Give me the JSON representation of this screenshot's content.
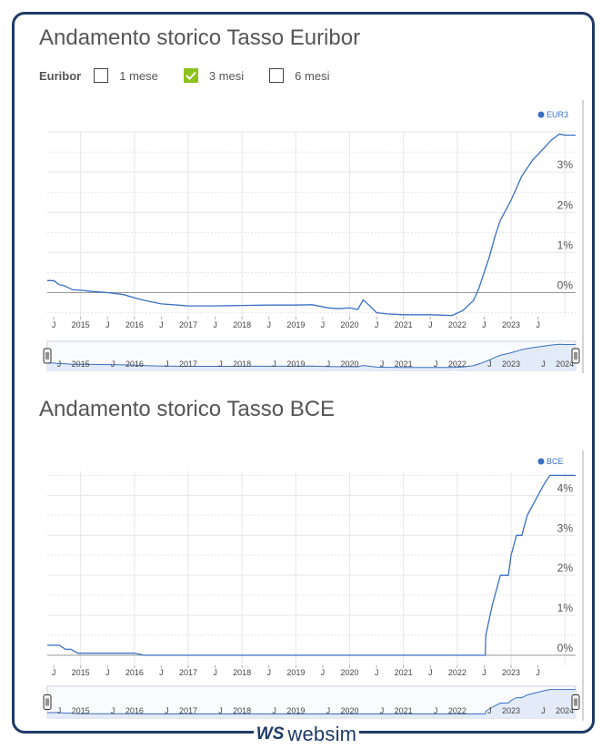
{
  "euribor": {
    "title": "Andamento storico Tasso Euribor",
    "selector_label": "Euribor",
    "options": [
      {
        "label": "1 mese",
        "checked": false
      },
      {
        "label": "3 mesi",
        "checked": true
      },
      {
        "label": "6 mesi",
        "checked": false
      }
    ]
  },
  "bce": {
    "title": "Andamento storico Tasso BCE"
  },
  "footer": {
    "brand": "websim",
    "logo_mark": "WS"
  },
  "colors": {
    "line": "#3a6fc4",
    "fill": "#e3ebf8",
    "frame": "#1f3a68",
    "grid": "#e6e6e6",
    "accent": "#8dc21f"
  },
  "chart_data": [
    {
      "type": "line",
      "legend": "EUR3",
      "legend_position": "top-right",
      "x_tick_labels": [
        "J",
        "2015",
        "J",
        "2016",
        "J",
        "2017",
        "J",
        "2018",
        "J",
        "2019",
        "J",
        "2020",
        "J",
        "2021",
        "J",
        "2022",
        "J",
        "2023",
        "J"
      ],
      "nav_tick_labels": [
        "J",
        "2015",
        "J",
        "2016",
        "J",
        "2017",
        "J",
        "2018",
        "J",
        "2019",
        "J",
        "2020",
        "J",
        "2021",
        "J",
        "2022",
        "J",
        "2023",
        "J",
        "2024"
      ],
      "y_tick_labels": [
        "0%",
        "1%",
        "2%",
        "3%"
      ],
      "y_ticks": [
        0,
        1,
        2,
        3
      ],
      "xlim": [
        2014.38,
        2024.2
      ],
      "ylim": [
        -0.6,
        4.0
      ],
      "grid": true,
      "series": [
        {
          "name": "EUR3",
          "x": [
            2014.38,
            2014.5,
            2014.6,
            2014.7,
            2014.85,
            2015.0,
            2015.2,
            2015.5,
            2015.8,
            2016.0,
            2016.2,
            2016.5,
            2016.8,
            2017.0,
            2017.5,
            2018.0,
            2018.5,
            2019.0,
            2019.3,
            2019.6,
            2019.8,
            2020.0,
            2020.15,
            2020.25,
            2020.35,
            2020.5,
            2020.7,
            2021.0,
            2021.5,
            2021.9,
            2022.1,
            2022.3,
            2022.4,
            2022.5,
            2022.6,
            2022.7,
            2022.8,
            2022.9,
            2023.0,
            2023.2,
            2023.4,
            2023.6,
            2023.75,
            2023.9,
            2024.0,
            2024.2
          ],
          "values": [
            0.3,
            0.3,
            0.2,
            0.17,
            0.07,
            0.06,
            0.03,
            0.0,
            -0.05,
            -0.13,
            -0.2,
            -0.28,
            -0.31,
            -0.33,
            -0.33,
            -0.32,
            -0.31,
            -0.31,
            -0.3,
            -0.38,
            -0.4,
            -0.38,
            -0.42,
            -0.18,
            -0.3,
            -0.5,
            -0.53,
            -0.55,
            -0.55,
            -0.57,
            -0.45,
            -0.2,
            0.1,
            0.5,
            0.9,
            1.4,
            1.8,
            2.05,
            2.3,
            2.9,
            3.3,
            3.58,
            3.8,
            3.95,
            3.92,
            3.92
          ]
        }
      ]
    },
    {
      "type": "line",
      "legend": "BCE",
      "legend_position": "top-right",
      "x_tick_labels": [
        "J",
        "2015",
        "J",
        "2016",
        "J",
        "2017",
        "J",
        "2018",
        "J",
        "2019",
        "J",
        "2020",
        "J",
        "2021",
        "J",
        "2022",
        "J",
        "2023",
        "J"
      ],
      "nav_tick_labels": [
        "J",
        "2015",
        "J",
        "2016",
        "J",
        "2017",
        "J",
        "2018",
        "J",
        "2019",
        "J",
        "2020",
        "J",
        "2021",
        "J",
        "2022",
        "J",
        "2023",
        "J",
        "2024"
      ],
      "y_tick_labels": [
        "0%",
        "1%",
        "2%",
        "3%",
        "4%"
      ],
      "y_ticks": [
        0,
        1,
        2,
        3,
        4
      ],
      "xlim": [
        2014.38,
        2024.2
      ],
      "ylim": [
        -0.25,
        4.6
      ],
      "grid": true,
      "series": [
        {
          "name": "BCE",
          "x": [
            2014.38,
            2014.6,
            2014.72,
            2014.82,
            2014.95,
            2016.0,
            2016.18,
            2016.2,
            2022.52,
            2022.53,
            2022.65,
            2022.8,
            2022.95,
            2023.0,
            2023.1,
            2023.2,
            2023.3,
            2023.4,
            2023.5,
            2023.6,
            2023.72,
            2024.2
          ],
          "values": [
            0.25,
            0.25,
            0.15,
            0.15,
            0.05,
            0.05,
            0.0,
            0.0,
            0.0,
            0.5,
            1.25,
            2.0,
            2.0,
            2.5,
            3.0,
            3.0,
            3.5,
            3.75,
            4.0,
            4.25,
            4.5,
            4.5
          ]
        }
      ]
    }
  ]
}
